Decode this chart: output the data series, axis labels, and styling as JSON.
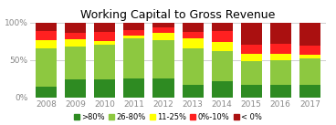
{
  "title": "Working Capital to Gross Revenue",
  "years": [
    "2008",
    "2009",
    "2010",
    "2011",
    "2012",
    "2013",
    "2014",
    "2015",
    "2016",
    "2017"
  ],
  "categories": [
    ">80%",
    "26-80%",
    "11-25%",
    "0%-10%",
    "< 0%"
  ],
  "colors": [
    "#2E8B22",
    "#8DC840",
    "#FFFF00",
    "#FF2020",
    "#AA1010"
  ],
  "data": {
    ">80%": [
      14,
      24,
      24,
      25,
      25,
      17,
      22,
      17,
      17,
      17
    ],
    "26-80%": [
      52,
      44,
      46,
      54,
      52,
      49,
      40,
      31,
      33,
      35
    ],
    "11-25%": [
      10,
      10,
      5,
      3,
      9,
      13,
      12,
      10,
      8,
      5
    ],
    "0%-10%": [
      13,
      8,
      13,
      8,
      8,
      9,
      15,
      12,
      14,
      12
    ],
    "< 0%": [
      11,
      14,
      12,
      10,
      6,
      12,
      11,
      30,
      28,
      31
    ]
  },
  "ylim": [
    0,
    100
  ],
  "yticks": [
    0,
    50,
    100
  ],
  "yticklabels": [
    "0%",
    "50%",
    "100%"
  ],
  "background_color": "#FFFFFF",
  "grid_color": "#C8C8C8",
  "title_fontsize": 9,
  "tick_fontsize": 6.5,
  "legend_fontsize": 6
}
